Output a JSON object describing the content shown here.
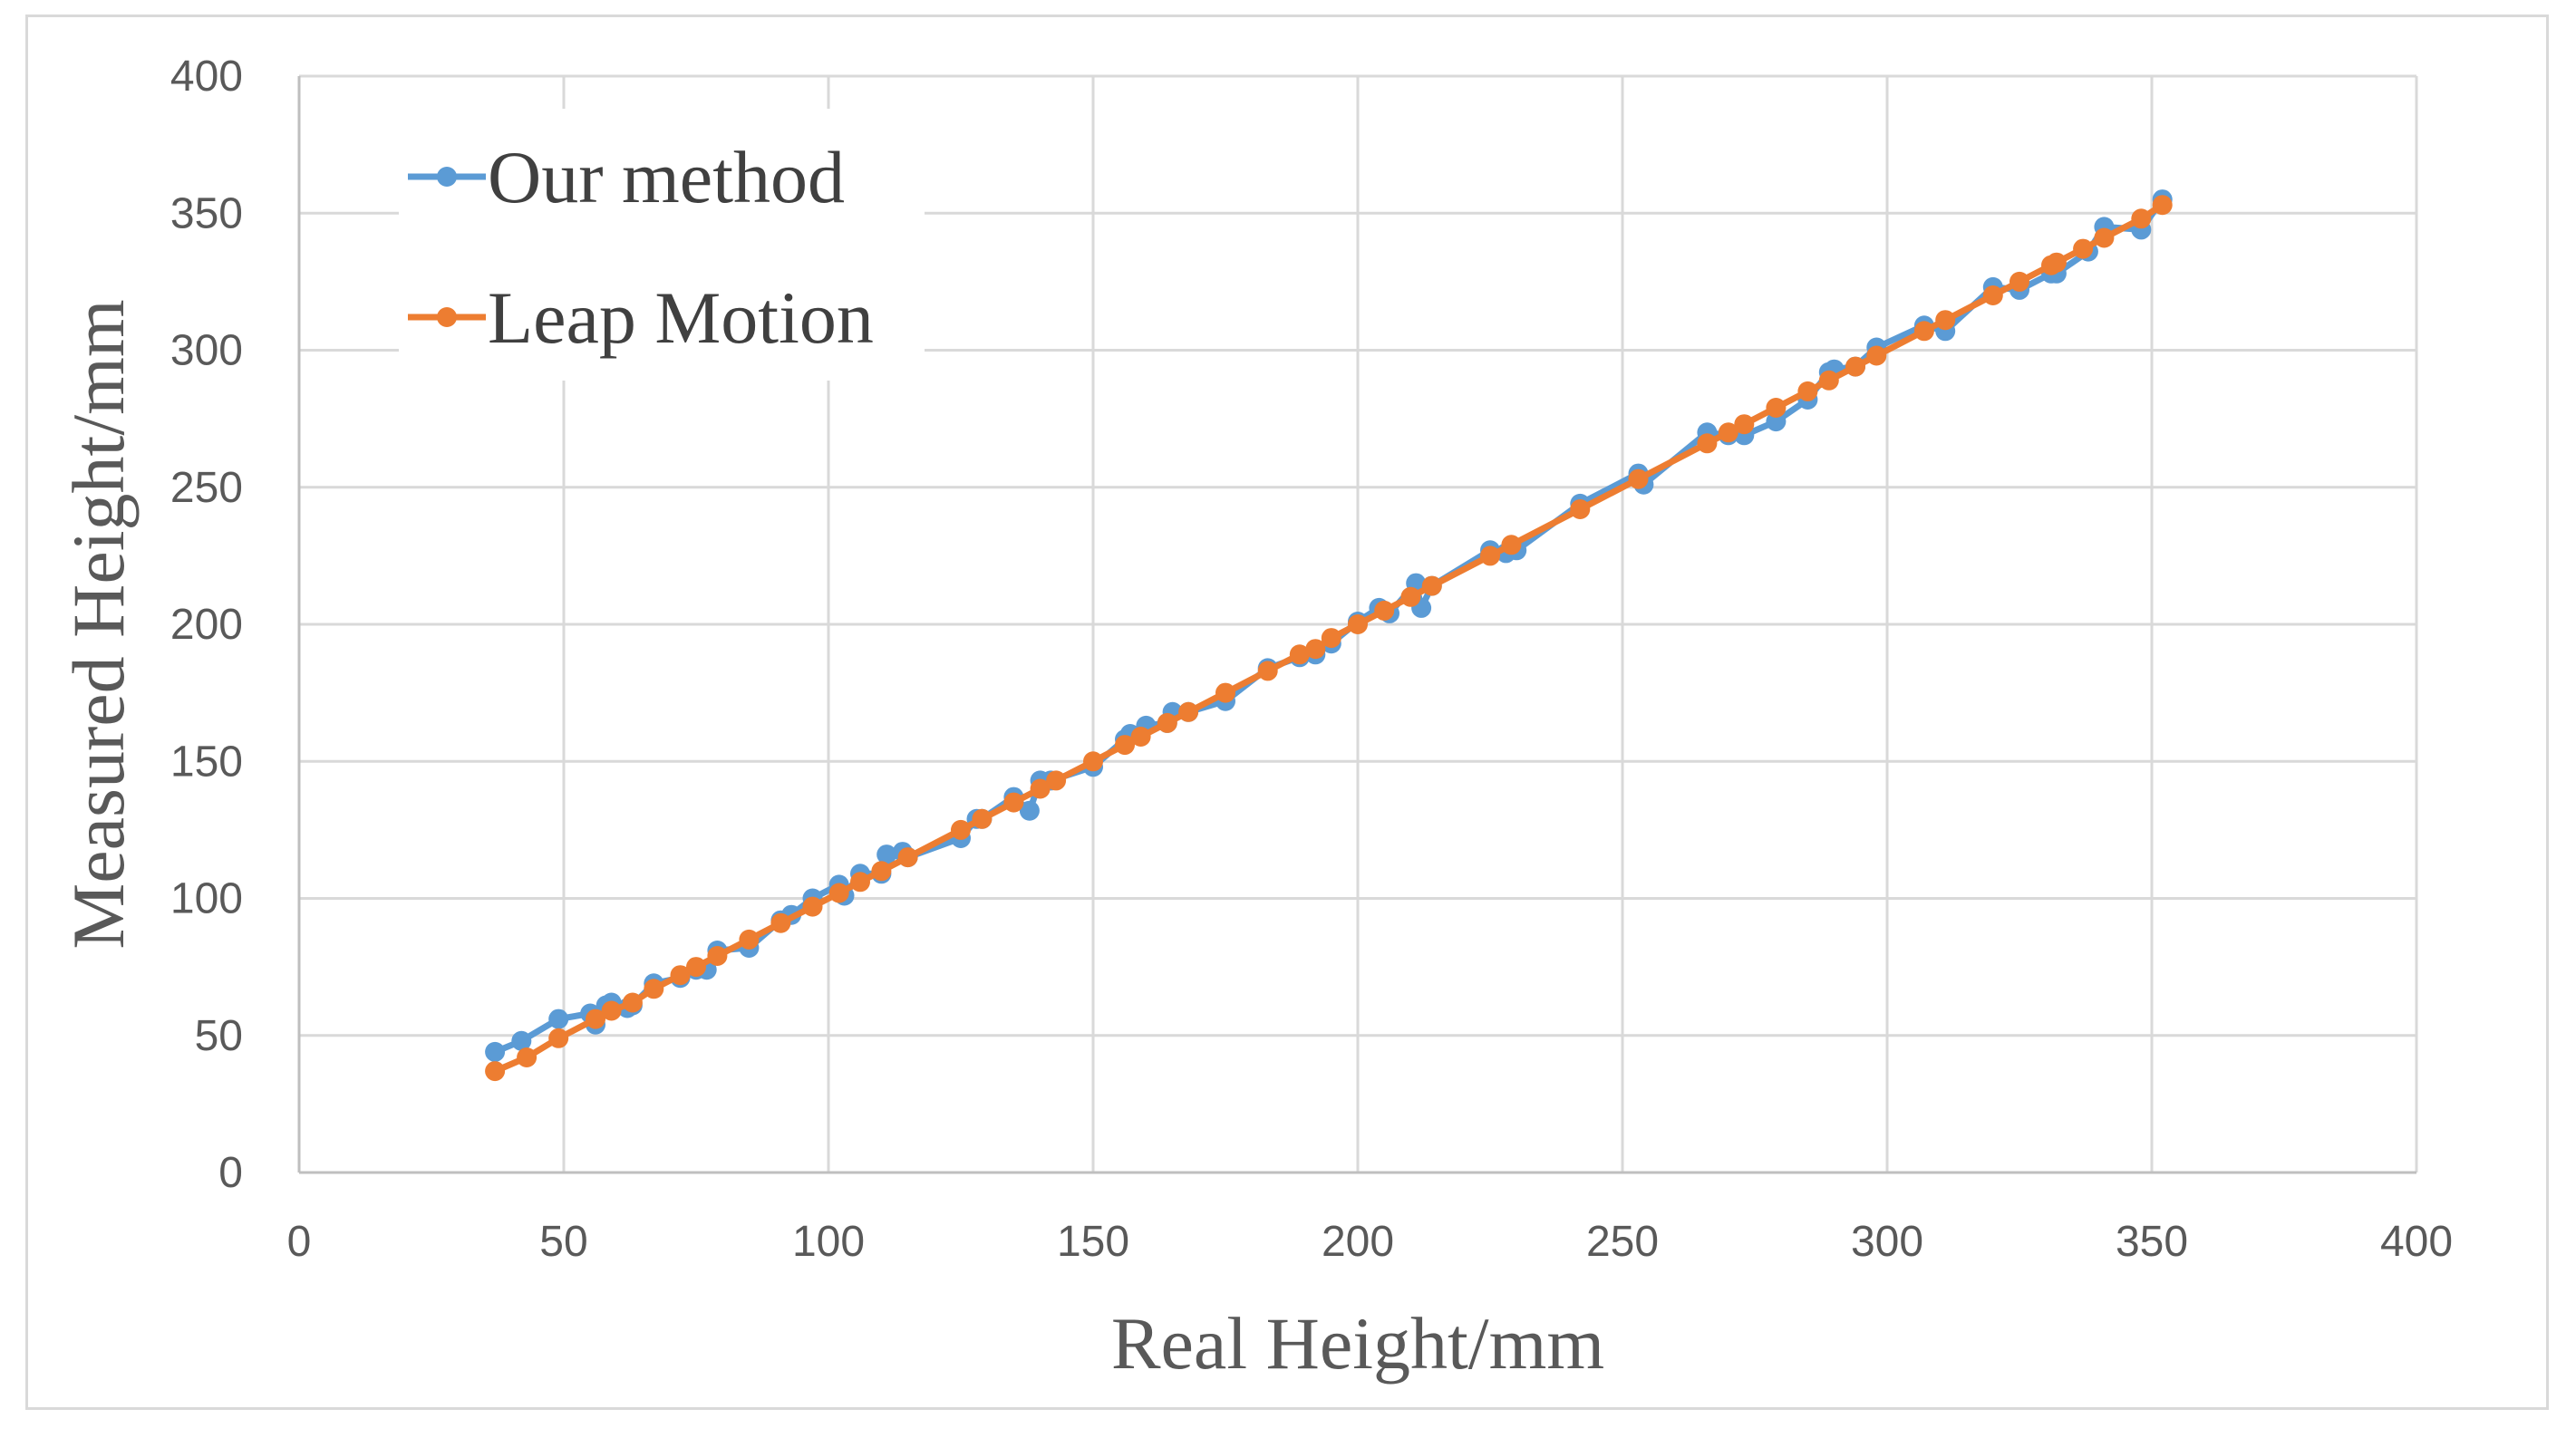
{
  "chart_data": {
    "type": "line",
    "xlabel": "Real Height/mm",
    "ylabel": "Measured Height/mm",
    "xlim": [
      0,
      400
    ],
    "ylim": [
      0,
      400
    ],
    "xticks": [
      "0",
      "50",
      "100",
      "150",
      "200",
      "250",
      "300",
      "350",
      "400"
    ],
    "yticks": [
      "0",
      "50",
      "100",
      "150",
      "200",
      "250",
      "300",
      "350",
      "400"
    ],
    "grid": true,
    "legend_position": "top-left",
    "series": [
      {
        "name": "Our method",
        "color": "#5b9bd5",
        "points": [
          [
            37,
            44
          ],
          [
            42,
            48
          ],
          [
            49,
            56
          ],
          [
            55,
            58
          ],
          [
            56,
            54
          ],
          [
            58,
            61
          ],
          [
            59,
            62
          ],
          [
            62,
            60
          ],
          [
            63,
            61
          ],
          [
            67,
            69
          ],
          [
            72,
            71
          ],
          [
            75,
            74
          ],
          [
            77,
            74
          ],
          [
            79,
            81
          ],
          [
            85,
            82
          ],
          [
            91,
            92
          ],
          [
            93,
            94
          ],
          [
            97,
            100
          ],
          [
            102,
            105
          ],
          [
            103,
            101
          ],
          [
            106,
            109
          ],
          [
            110,
            109
          ],
          [
            111,
            116
          ],
          [
            114,
            117
          ],
          [
            115,
            115
          ],
          [
            125,
            122
          ],
          [
            128,
            129
          ],
          [
            129,
            129
          ],
          [
            135,
            137
          ],
          [
            138,
            132
          ],
          [
            140,
            143
          ],
          [
            142,
            143
          ],
          [
            150,
            148
          ],
          [
            156,
            158
          ],
          [
            157,
            160
          ],
          [
            160,
            163
          ],
          [
            164,
            164
          ],
          [
            165,
            168
          ],
          [
            168,
            168
          ],
          [
            175,
            172
          ],
          [
            183,
            184
          ],
          [
            189,
            188
          ],
          [
            192,
            189
          ],
          [
            195,
            193
          ],
          [
            200,
            201
          ],
          [
            204,
            206
          ],
          [
            206,
            204
          ],
          [
            211,
            215
          ],
          [
            212,
            206
          ],
          [
            214,
            214
          ],
          [
            225,
            227
          ],
          [
            228,
            226
          ],
          [
            230,
            227
          ],
          [
            242,
            244
          ],
          [
            253,
            255
          ],
          [
            254,
            251
          ],
          [
            266,
            270
          ],
          [
            270,
            269
          ],
          [
            273,
            269
          ],
          [
            279,
            274
          ],
          [
            285,
            282
          ],
          [
            289,
            292
          ],
          [
            290,
            293
          ],
          [
            294,
            294
          ],
          [
            298,
            301
          ],
          [
            307,
            309
          ],
          [
            311,
            307
          ],
          [
            320,
            323
          ],
          [
            325,
            322
          ],
          [
            331,
            328
          ],
          [
            332,
            328
          ],
          [
            338,
            336
          ],
          [
            341,
            345
          ],
          [
            348,
            344
          ],
          [
            352,
            355
          ]
        ]
      },
      {
        "name": "Leap Motion",
        "color": "#ed7d31",
        "points": [
          [
            37,
            37
          ],
          [
            43,
            42
          ],
          [
            49,
            49
          ],
          [
            56,
            56
          ],
          [
            59,
            59
          ],
          [
            63,
            62
          ],
          [
            67,
            67
          ],
          [
            72,
            72
          ],
          [
            75,
            75
          ],
          [
            79,
            79
          ],
          [
            85,
            85
          ],
          [
            91,
            91
          ],
          [
            97,
            97
          ],
          [
            102,
            102
          ],
          [
            106,
            106
          ],
          [
            110,
            110
          ],
          [
            115,
            115
          ],
          [
            125,
            125
          ],
          [
            129,
            129
          ],
          [
            135,
            135
          ],
          [
            140,
            140
          ],
          [
            143,
            143
          ],
          [
            150,
            150
          ],
          [
            156,
            156
          ],
          [
            159,
            159
          ],
          [
            164,
            164
          ],
          [
            168,
            168
          ],
          [
            175,
            175
          ],
          [
            183,
            183
          ],
          [
            189,
            189
          ],
          [
            192,
            191
          ],
          [
            195,
            195
          ],
          [
            200,
            200
          ],
          [
            205,
            205
          ],
          [
            210,
            210
          ],
          [
            214,
            214
          ],
          [
            225,
            225
          ],
          [
            229,
            229
          ],
          [
            242,
            242
          ],
          [
            253,
            253
          ],
          [
            266,
            266
          ],
          [
            270,
            270
          ],
          [
            273,
            273
          ],
          [
            279,
            279
          ],
          [
            285,
            285
          ],
          [
            289,
            289
          ],
          [
            294,
            294
          ],
          [
            298,
            298
          ],
          [
            307,
            307
          ],
          [
            311,
            311
          ],
          [
            320,
            320
          ],
          [
            325,
            325
          ],
          [
            331,
            331
          ],
          [
            332,
            332
          ],
          [
            337,
            337
          ],
          [
            341,
            341
          ],
          [
            348,
            348
          ],
          [
            352,
            353
          ]
        ]
      }
    ]
  }
}
